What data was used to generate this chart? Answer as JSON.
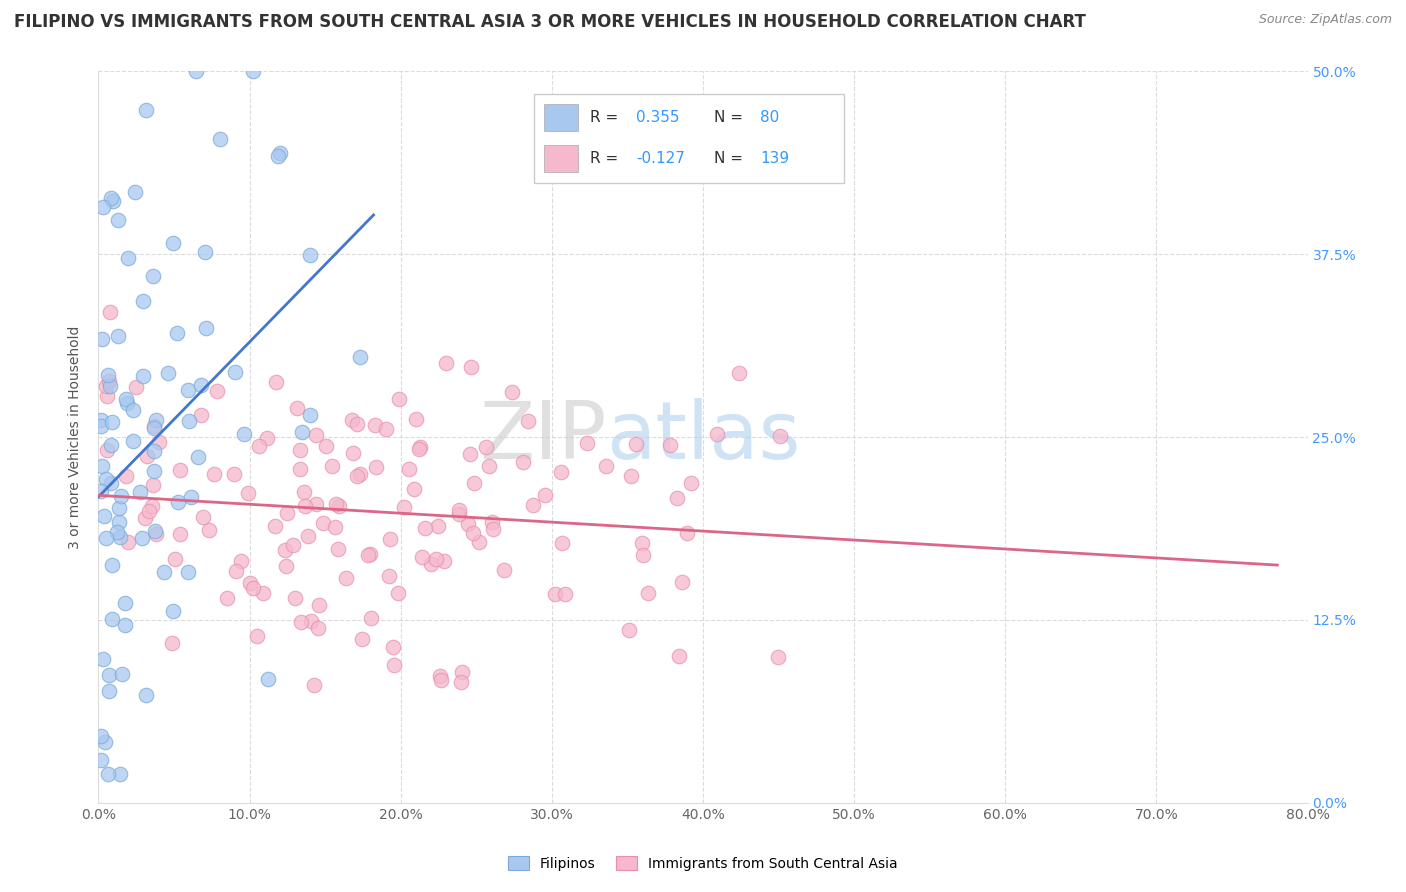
{
  "title": "FILIPINO VS IMMIGRANTS FROM SOUTH CENTRAL ASIA 3 OR MORE VEHICLES IN HOUSEHOLD CORRELATION CHART",
  "source": "Source: ZipAtlas.com",
  "xlabel_vals": [
    0.0,
    10.0,
    20.0,
    30.0,
    40.0,
    50.0,
    60.0,
    70.0,
    80.0
  ],
  "ylabel_vals": [
    0.0,
    12.5,
    25.0,
    37.5,
    50.0
  ],
  "ylabel_label": "3 or more Vehicles in Household",
  "xmin": 0.0,
  "xmax": 80.0,
  "ymin": 0.0,
  "ymax": 50.0,
  "blue_R": 0.355,
  "blue_N": 80,
  "pink_R": -0.127,
  "pink_N": 139,
  "blue_color": "#a8c8f0",
  "pink_color": "#f5b8cc",
  "blue_edge_color": "#7aaad8",
  "pink_edge_color": "#e890aa",
  "blue_line_color": "#4477cc",
  "pink_line_color": "#dd6688",
  "legend_label_blue": "Filipinos",
  "legend_label_pink": "Immigrants from South Central Asia",
  "watermark_zip": "ZIP",
  "watermark_atlas": "atlas",
  "title_fontsize": 12,
  "axis_label_fontsize": 10,
  "tick_fontsize": 10,
  "right_tick_color": "#4499ff",
  "blue_seed": 42,
  "pink_seed": 7
}
